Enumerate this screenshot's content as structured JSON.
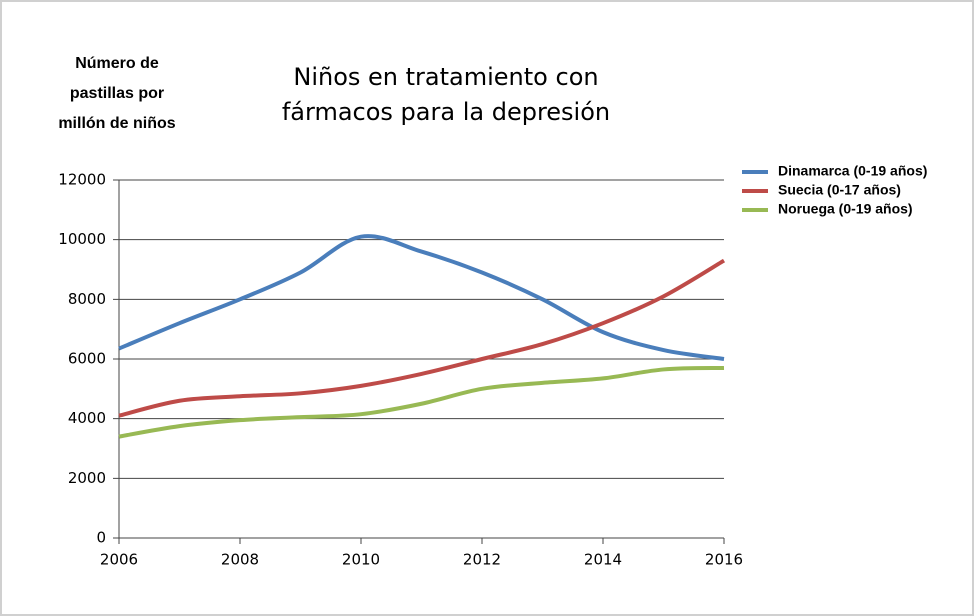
{
  "chart_data": {
    "type": "line",
    "title": [
      "Niños en tratamiento con",
      "fármacos para la depresión"
    ],
    "y_label": [
      "Número de",
      "pastillas por",
      "millón de niños"
    ],
    "x": [
      2006,
      2007,
      2008,
      2009,
      2010,
      2011,
      2012,
      2013,
      2014,
      2015,
      2016
    ],
    "series": [
      {
        "name": "Dinamarca (0-19 años)",
        "color": "#4a7ebb",
        "values": [
          6350,
          7200,
          8000,
          8900,
          10100,
          9600,
          8900,
          8000,
          6900,
          6300,
          6000
        ]
      },
      {
        "name": "Suecia (0-17 años)",
        "color": "#be4b48",
        "values": [
          4100,
          4600,
          4750,
          4850,
          5100,
          5500,
          6000,
          6500,
          7200,
          8100,
          9300
        ]
      },
      {
        "name": "Noruega (0-19 años)",
        "color": "#98b954",
        "values": [
          3400,
          3750,
          3950,
          4050,
          4150,
          4500,
          5000,
          5200,
          5350,
          5650,
          5700
        ]
      }
    ],
    "xlim": [
      2006,
      2016
    ],
    "xticks": [
      2006,
      2008,
      2010,
      2012,
      2014,
      2016
    ],
    "ylim": [
      0,
      12000
    ],
    "yticks": [
      0,
      2000,
      4000,
      6000,
      8000,
      10000,
      12000
    ],
    "grid": true,
    "legend": "top-right"
  }
}
